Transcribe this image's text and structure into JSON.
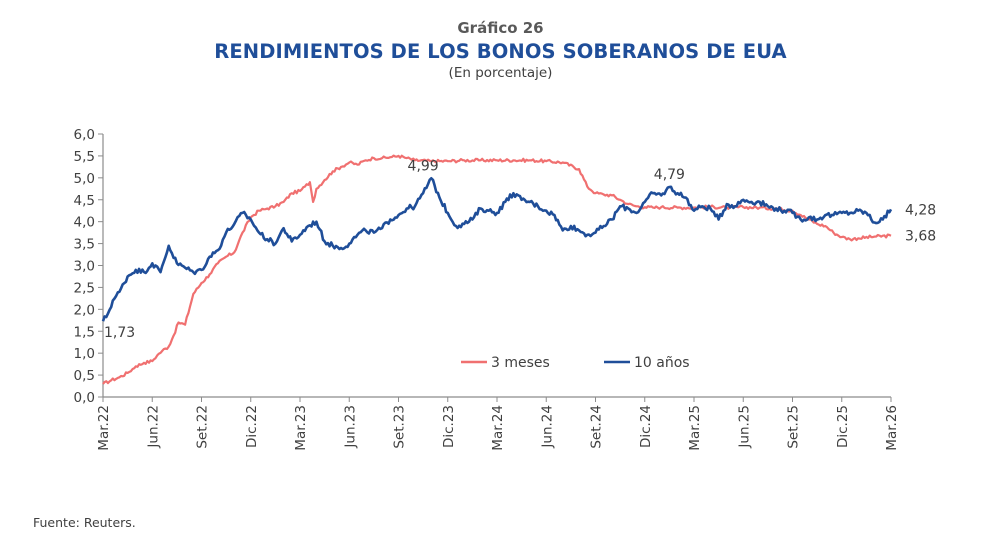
{
  "header": {
    "chart_number": "Gráfico 26",
    "title": "RENDIMIENTOS DE LOS BONOS SOBERANOS DE EUA",
    "subtitle": "(En porcentaje)"
  },
  "footer": {
    "source": "Fuente: Reuters."
  },
  "colors": {
    "three_month": "#f07070",
    "ten_year": "#1f4e99",
    "axis": "#8c8c8c",
    "text": "#404040",
    "title": "#1f4e99"
  },
  "chart_data": {
    "type": "line",
    "title": "RENDIMIENTOS DE LOS BONOS SOBERANOS DE EUA",
    "subtitle": "(En porcentaje)",
    "xlabel": "",
    "ylabel": "",
    "ylim": [
      0,
      6
    ],
    "yticks": [
      "0,0",
      "0,5",
      "1,0",
      "1,5",
      "2,0",
      "2,5",
      "3,0",
      "3,5",
      "4,0",
      "4,5",
      "5,0",
      "5,5",
      "6,0"
    ],
    "xticks": [
      "Mar.22",
      "Jun.22",
      "Set.22",
      "Dic.22",
      "Mar.23",
      "Jun.23",
      "Set.23",
      "Dic.23",
      "Mar.24",
      "Jun.24",
      "Set.24",
      "Dic.24",
      "Mar.25",
      "Jun.25",
      "Set.25",
      "Dic.25",
      "Mar.26"
    ],
    "grid": false,
    "legend": {
      "position": "bottom-center-inside",
      "entries": [
        "3 meses",
        "10 años"
      ]
    },
    "x_unit": "months since Mar.22",
    "series": [
      {
        "name": "3 meses",
        "color": "#f07070",
        "x": [
          0,
          0.5,
          1,
          1.5,
          2,
          2.5,
          3,
          3.3,
          3.6,
          4,
          4.3,
          4.6,
          5,
          5.5,
          6,
          6.5,
          7,
          7.5,
          8,
          8.5,
          9,
          9.5,
          10,
          10.5,
          11,
          11.5,
          12,
          12.3,
          12.6,
          12.8,
          13,
          13.5,
          14,
          14.5,
          15,
          15.5,
          16,
          16.5,
          17,
          17.5,
          18,
          18.5,
          19,
          20,
          21,
          22,
          23,
          24,
          25,
          26,
          27,
          28,
          29,
          29.5,
          30,
          30.5,
          31,
          31.5,
          32,
          32.5,
          33,
          33.5,
          34,
          35,
          36,
          37,
          38,
          39,
          40,
          41,
          42,
          42.5,
          43,
          43.5,
          44,
          44.5,
          45,
          45.5,
          46,
          47,
          48
        ],
        "values": [
          0.3,
          0.38,
          0.45,
          0.55,
          0.7,
          0.78,
          0.82,
          0.95,
          1.05,
          1.15,
          1.4,
          1.7,
          1.65,
          2.35,
          2.6,
          2.8,
          3.05,
          3.2,
          3.3,
          3.75,
          4.1,
          4.25,
          4.3,
          4.35,
          4.45,
          4.65,
          4.7,
          4.8,
          4.9,
          4.45,
          4.75,
          4.95,
          5.15,
          5.25,
          5.35,
          5.3,
          5.4,
          5.45,
          5.45,
          5.47,
          5.5,
          5.45,
          5.4,
          5.38,
          5.38,
          5.4,
          5.4,
          5.4,
          5.4,
          5.4,
          5.38,
          5.35,
          5.2,
          4.8,
          4.65,
          4.62,
          4.6,
          4.5,
          4.4,
          4.35,
          4.33,
          4.32,
          4.33,
          4.32,
          4.32,
          4.34,
          4.32,
          4.33,
          4.32,
          4.3,
          4.25,
          4.15,
          4.05,
          3.95,
          3.9,
          3.75,
          3.65,
          3.6,
          3.62,
          3.66,
          3.68
        ]
      },
      {
        "name": "10 años",
        "color": "#1f4e99",
        "x": [
          0,
          0.3,
          0.6,
          1,
          1.5,
          2,
          2.5,
          3,
          3.5,
          4,
          4.5,
          5,
          5.5,
          6,
          6.5,
          7,
          7.5,
          8,
          8.5,
          9,
          9.5,
          10,
          10.5,
          11,
          11.5,
          12,
          12.5,
          13,
          13.5,
          14,
          14.5,
          15,
          15.5,
          16,
          16.5,
          17,
          17.5,
          18,
          18.5,
          19,
          19.5,
          20,
          20.5,
          21,
          21.5,
          22,
          22.5,
          23,
          23.5,
          24,
          24.5,
          25,
          25.5,
          26,
          26.5,
          27,
          27.5,
          28,
          28.5,
          29,
          29.5,
          30,
          30.5,
          31,
          31.5,
          32,
          32.5,
          33,
          33.5,
          34,
          34.5,
          35,
          35.5,
          36,
          36.5,
          37,
          37.5,
          38,
          38.5,
          39,
          39.5,
          40,
          40.5,
          41,
          41.5,
          42,
          42.5,
          43,
          43.5,
          44,
          44.5,
          45,
          45.5,
          46,
          46.5,
          47,
          47.5,
          48
        ],
        "values": [
          1.73,
          1.9,
          2.2,
          2.4,
          2.75,
          2.9,
          2.85,
          3.05,
          2.85,
          3.45,
          3.05,
          2.95,
          2.85,
          2.9,
          3.2,
          3.35,
          3.75,
          3.95,
          4.2,
          4.05,
          3.75,
          3.6,
          3.5,
          3.85,
          3.55,
          3.7,
          3.9,
          4.0,
          3.55,
          3.45,
          3.4,
          3.5,
          3.7,
          3.8,
          3.75,
          3.85,
          4.05,
          4.15,
          4.3,
          4.35,
          4.65,
          4.99,
          4.55,
          4.2,
          3.9,
          3.95,
          4.05,
          4.3,
          4.25,
          4.2,
          4.45,
          4.65,
          4.5,
          4.45,
          4.35,
          4.25,
          4.15,
          3.8,
          3.9,
          3.8,
          3.7,
          3.75,
          3.9,
          4.05,
          4.35,
          4.3,
          4.2,
          4.45,
          4.65,
          4.6,
          4.79,
          4.65,
          4.55,
          4.25,
          4.35,
          4.3,
          4.05,
          4.4,
          4.35,
          4.5,
          4.45,
          4.45,
          4.35,
          4.3,
          4.25,
          4.2,
          4.05,
          4.1,
          4.05,
          4.15,
          4.15,
          4.2,
          4.2,
          4.25,
          4.2,
          3.98,
          4.05,
          4.28
        ]
      }
    ],
    "annotations": [
      {
        "series": "10 años",
        "text": "1,73",
        "x": 0,
        "y": 1.73
      },
      {
        "series": "10 años",
        "text": "4,99",
        "x": 19.5,
        "y": 4.99
      },
      {
        "series": "10 años",
        "text": "4,79",
        "x": 34.5,
        "y": 4.79
      },
      {
        "series": "10 años",
        "text": "4,28",
        "x": 48,
        "y": 4.28
      },
      {
        "series": "3 meses",
        "text": "3,68",
        "x": 48,
        "y": 3.68
      }
    ]
  }
}
